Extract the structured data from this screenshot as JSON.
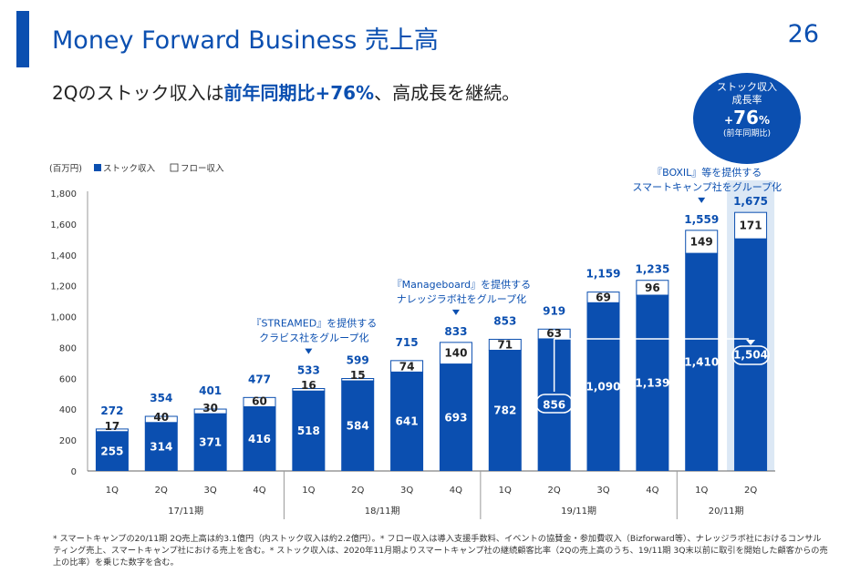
{
  "header": {
    "title": "Money Forward Business 売上高",
    "page_number": "26",
    "subtitle_pre": "2Qのストック収入は",
    "subtitle_em": "前年同期比+76%",
    "subtitle_post": "、高成長を継続。"
  },
  "badge": {
    "line1": "ストック収入",
    "line2": "成長率",
    "value_sign": "+",
    "value_num": "76",
    "value_unit": "%",
    "line4": "(前年同期比)"
  },
  "colors": {
    "primary": "#0b4fb0",
    "highlight_bg": "#dce8f5",
    "flow_fill": "#ffffff"
  },
  "chart_data": {
    "type": "bar",
    "stacked": true,
    "unit_label": "(百万円)",
    "legend": [
      "ストック収入",
      "フロー収入"
    ],
    "ylim": [
      0,
      1800
    ],
    "yticks": [
      0,
      200,
      400,
      600,
      800,
      1000,
      1200,
      1400,
      1600,
      1800
    ],
    "ytick_labels": [
      "0",
      "200",
      "400",
      "600",
      "800",
      "1,000",
      "1,200",
      "1,400",
      "1,600",
      "1,800"
    ],
    "categories": [
      "1Q",
      "2Q",
      "3Q",
      "4Q",
      "1Q",
      "2Q",
      "3Q",
      "4Q",
      "1Q",
      "2Q",
      "3Q",
      "4Q",
      "1Q",
      "2Q"
    ],
    "periods": [
      {
        "label": "17/11期",
        "count": 4
      },
      {
        "label": "18/11期",
        "count": 4
      },
      {
        "label": "19/11期",
        "count": 4
      },
      {
        "label": "20/11期",
        "count": 2
      }
    ],
    "series": [
      {
        "name": "ストック収入",
        "values": [
          255,
          314,
          371,
          416,
          518,
          584,
          641,
          693,
          782,
          856,
          1090,
          1139,
          1410,
          1504
        ],
        "labels": [
          "255",
          "314",
          "371",
          "416",
          "518",
          "584",
          "641",
          "693",
          "782",
          "856",
          "1,090",
          "1,139",
          "1,410",
          "1,504"
        ]
      },
      {
        "name": "フロー収入",
        "values": [
          17,
          40,
          30,
          60,
          16,
          15,
          74,
          140,
          71,
          63,
          69,
          96,
          149,
          171
        ],
        "labels": [
          "17",
          "40",
          "30",
          "60",
          "16",
          "15",
          "74",
          "140",
          "71",
          "63",
          "69",
          "96",
          "149",
          "171"
        ]
      }
    ],
    "totals": [
      272,
      354,
      401,
      477,
      533,
      599,
      715,
      833,
      853,
      919,
      1159,
      1235,
      1559,
      1675
    ],
    "total_labels": [
      "272",
      "354",
      "401",
      "477",
      "533",
      "599",
      "715",
      "833",
      "853",
      "919",
      "1,159",
      "1,235",
      "1,559",
      "1,675"
    ],
    "annotations": [
      {
        "bar_index": 4,
        "lines": [
          "『STREAMED』を提供する",
          "クラビス社をグループ化"
        ]
      },
      {
        "bar_index": 7,
        "lines": [
          "『Manageboard』を提供する",
          "ナレッジラボ社をグループ化"
        ]
      },
      {
        "bar_index": 12,
        "lines": [
          "『BOXIL』等を提供する",
          "スマートキャンプ社をグループ化"
        ]
      }
    ],
    "highlighted_bar_index": 13,
    "comparison": {
      "from_index": 9,
      "to_index": 13
    }
  },
  "footnote": "* スマートキャンプの20/11期 2Q売上高は約3.1億円（内ストック収入は約2.2億円）。* フロー収入は導入支援手数料、イベントの協賛金・参加費収入（Bizforward等）、ナレッジラボ社におけるコンサルティング売上、スマートキャンプ社における売上を含む。* ストック収入は、2020年11月期よりスマートキャンプ社の継続顧客比率（2Qの売上高のうち、19/11期 3Q末以前に取引を開始した顧客からの売上の比率）を乗じた数字を含む。"
}
